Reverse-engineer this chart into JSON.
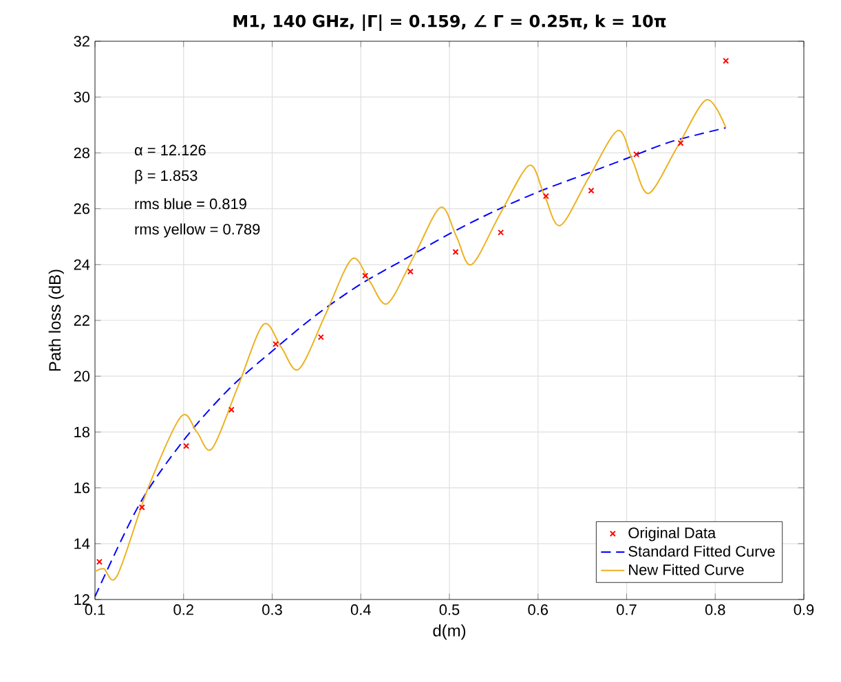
{
  "chart_data": {
    "type": "scatter",
    "title": "M1, 140 GHz, |Γ| = 0.159, ∠ Γ = 0.25π, k = 10π",
    "xlabel": "d(m)",
    "ylabel": "Path loss (dB)",
    "xlim": [
      0.1,
      0.9
    ],
    "ylim": [
      12,
      32
    ],
    "xticks": [
      0.1,
      0.2,
      0.3,
      0.4,
      0.5,
      0.6,
      0.7,
      0.8,
      0.9
    ],
    "yticks": [
      12,
      14,
      16,
      18,
      20,
      22,
      24,
      26,
      28,
      30,
      32
    ],
    "grid": true,
    "legend": "bottom right",
    "annotations": [
      "α = 12.126",
      "β = 1.853",
      "rms blue = 0.819",
      "rms yellow = 0.789"
    ],
    "series": [
      {
        "name": "Original Data",
        "type": "scatter",
        "marker": "cross",
        "color": "#ff0000",
        "x": [
          0.105,
          0.153,
          0.203,
          0.254,
          0.304,
          0.355,
          0.405,
          0.456,
          0.507,
          0.558,
          0.609,
          0.66,
          0.711,
          0.761,
          0.812
        ],
        "values": [
          13.35,
          15.3,
          17.5,
          18.8,
          21.15,
          21.4,
          23.6,
          23.75,
          24.45,
          25.15,
          26.45,
          26.65,
          27.95,
          28.35,
          31.3
        ]
      },
      {
        "name": "Standard Fitted Curve",
        "type": "line",
        "marker": "none",
        "line_style": "dashed",
        "color": "#0000ff",
        "x": [
          0.1,
          0.15,
          0.2,
          0.25,
          0.3,
          0.35,
          0.4,
          0.45,
          0.5,
          0.55,
          0.6,
          0.65,
          0.7,
          0.75,
          0.812
        ],
        "values": [
          12.1,
          15.4,
          17.7,
          19.5,
          20.9,
          22.2,
          23.3,
          24.2,
          25.1,
          25.9,
          26.6,
          27.2,
          27.8,
          28.4,
          28.9
        ]
      },
      {
        "name": "New Fitted Curve",
        "type": "line",
        "marker": "none",
        "line_style": "solid",
        "color": "#edb120",
        "x": [
          0.1,
          0.11,
          0.125,
          0.16,
          0.197,
          0.215,
          0.232,
          0.261,
          0.29,
          0.31,
          0.33,
          0.36,
          0.39,
          0.41,
          0.43,
          0.46,
          0.49,
          0.508,
          0.525,
          0.557,
          0.59,
          0.607,
          0.625,
          0.657,
          0.69,
          0.707,
          0.725,
          0.757,
          0.79,
          0.812
        ],
        "values": [
          13.0,
          13.1,
          12.85,
          16.0,
          18.55,
          18.0,
          17.4,
          19.6,
          21.85,
          21.05,
          20.25,
          22.2,
          24.2,
          23.4,
          22.6,
          24.3,
          26.05,
          25.0,
          24.0,
          25.8,
          27.55,
          26.5,
          25.4,
          27.1,
          28.8,
          27.7,
          26.55,
          28.2,
          29.9,
          28.9
        ]
      }
    ]
  }
}
